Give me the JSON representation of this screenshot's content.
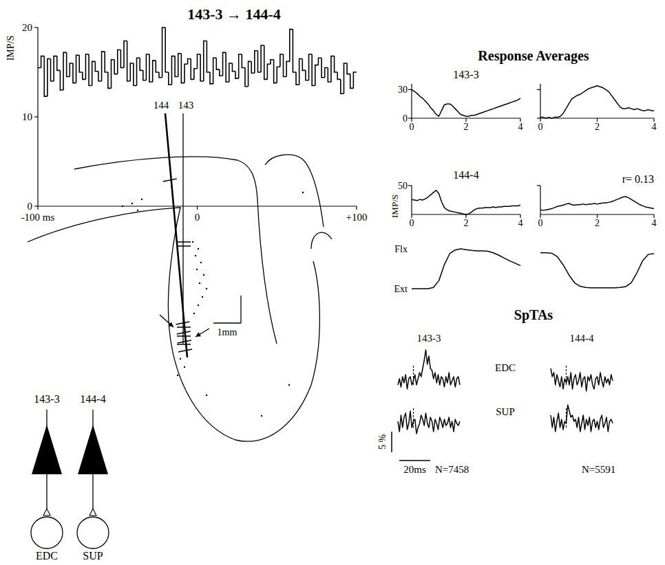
{
  "chart_data": [
    {
      "type": "histogram",
      "title": "143-3 → 144-4",
      "ylabel": "IMP/S",
      "color": "#000000",
      "line_style": "step",
      "bins": [
        -100,
        -98,
        -96,
        -94,
        -92,
        -90,
        -88,
        -86,
        -84,
        -82,
        -80,
        -78,
        -76,
        -74,
        -72,
        -70,
        -68,
        -66,
        -64,
        -62,
        -60,
        -58,
        -56,
        -54,
        -52,
        -50,
        -48,
        -46,
        -44,
        -42,
        -40,
        -38,
        -36,
        -34,
        -32,
        -30,
        -28,
        -26,
        -24,
        -22,
        -20,
        -18,
        -16,
        -14,
        -12,
        -10,
        -8,
        -6,
        -4,
        -2,
        0,
        2,
        4,
        6,
        8,
        10,
        12,
        14,
        16,
        18,
        20,
        22,
        24,
        26,
        28,
        30,
        32,
        34,
        36,
        38,
        40,
        42,
        44,
        46,
        48,
        50,
        52,
        54,
        56,
        58,
        60,
        62,
        64,
        66,
        68,
        70,
        72,
        74,
        76,
        78,
        80,
        82,
        84,
        86,
        88,
        90,
        92,
        94,
        96,
        98,
        100
      ],
      "counts": [
        15.5,
        16.8,
        12.3,
        16.5,
        14.0,
        16.8,
        15.2,
        13.0,
        17.2,
        14.5,
        16.0,
        13.8,
        16.9,
        15.0,
        14.2,
        17.0,
        13.5,
        16.2,
        15.1,
        14.0,
        17.3,
        15.0,
        13.2,
        16.4,
        14.8,
        17.5,
        15.5,
        18.5,
        14.0,
        16.0,
        13.5,
        16.6,
        15.2,
        14.1,
        17.0,
        13.9,
        16.3,
        15.0,
        14.4,
        20.0,
        15.0,
        13.6,
        16.8,
        14.5,
        17.1,
        13.8,
        15.9,
        16.5,
        14.2,
        15.4,
        17.0,
        14.0,
        18.5,
        15.0,
        13.7,
        16.6,
        15.3,
        14.6,
        17.2,
        13.9,
        16.0,
        15.1,
        14.3,
        17.0,
        15.5,
        13.4,
        16.2,
        14.9,
        17.4,
        15.0,
        18.0,
        14.2,
        15.9,
        16.4,
        13.8,
        15.6,
        17.0,
        14.5,
        16.2,
        19.8,
        15.0,
        13.6,
        16.5,
        15.2,
        14.1,
        17.0,
        13.5,
        15.8,
        16.6,
        14.4,
        15.5,
        13.9,
        16.8,
        15.0,
        14.2,
        12.6,
        16.0,
        14.8,
        13.2,
        15.0
      ],
      "xlim": [
        -100,
        100
      ],
      "ylim": [
        0,
        20
      ],
      "xticks": [
        {
          "value": -100,
          "label": "-100 ms"
        },
        0,
        {
          "value": 100,
          "label": "+100"
        }
      ],
      "yticks": [
        0,
        10,
        20
      ]
    },
    {
      "type": "line",
      "title": "143-3",
      "color": "#000000",
      "line_style": "solid",
      "x": [
        0,
        0.1,
        0.2,
        0.3,
        0.4,
        0.5,
        0.6,
        0.7,
        0.8,
        0.9,
        1,
        1.1,
        1.2,
        1.3,
        1.4,
        1.5,
        1.6,
        1.7,
        1.8,
        1.9,
        2,
        2.1,
        2.2,
        2.3,
        2.4,
        2.5,
        2.6,
        2.7,
        2.8,
        2.9,
        3,
        3.1,
        3.2,
        3.3,
        3.4,
        3.5,
        3.6,
        3.7,
        3.8,
        3.9,
        4
      ],
      "values": [
        30,
        28,
        26,
        23,
        21,
        18,
        15,
        11,
        8,
        4,
        2,
        8,
        14,
        15,
        15,
        13,
        10,
        7,
        4,
        3,
        2,
        2,
        3,
        3,
        4,
        5,
        6,
        7,
        8,
        9,
        10,
        11,
        12,
        13,
        14,
        15,
        16,
        17,
        18,
        19,
        21
      ],
      "xlim": [
        0,
        4
      ],
      "ylim": [
        0,
        36
      ],
      "xticks": [
        0,
        2,
        4
      ],
      "yticks": [
        0,
        30
      ]
    },
    {
      "type": "line",
      "color": "#000000",
      "line_style": "solid",
      "tick_labels": "x",
      "x": [
        0,
        0.1,
        0.2,
        0.3,
        0.4,
        0.5,
        0.6,
        0.7,
        0.8,
        0.9,
        1,
        1.1,
        1.2,
        1.3,
        1.4,
        1.5,
        1.6,
        1.7,
        1.8,
        1.9,
        2,
        2.1,
        2.2,
        2.3,
        2.4,
        2.5,
        2.6,
        2.7,
        2.8,
        2.9,
        3,
        3.1,
        3.2,
        3.3,
        3.4,
        3.5,
        3.6,
        3.7,
        3.8,
        3.9,
        4
      ],
      "values": [
        1,
        1,
        0,
        1,
        0,
        1,
        1,
        2,
        5,
        10,
        15,
        20,
        22,
        24,
        25,
        27,
        29,
        31,
        32,
        33,
        34,
        33,
        32,
        30,
        28,
        24,
        20,
        16,
        12,
        10,
        10,
        11,
        10,
        9,
        10,
        9,
        8,
        8,
        9,
        8,
        8
      ],
      "xlim": [
        0,
        4
      ],
      "ylim": [
        0,
        36
      ],
      "xticks": [
        0,
        2,
        4
      ],
      "yticks": [
        0,
        30
      ]
    },
    {
      "type": "line",
      "title": "144-4",
      "ylabel": "IMP/S",
      "color": "#000000",
      "line_style": "solid",
      "x": [
        0,
        0.1,
        0.2,
        0.3,
        0.4,
        0.5,
        0.6,
        0.7,
        0.8,
        0.9,
        1,
        1.1,
        1.2,
        1.3,
        1.4,
        1.5,
        1.6,
        1.7,
        1.8,
        1.9,
        2,
        2.1,
        2.2,
        2.3,
        2.4,
        2.5,
        2.6,
        2.7,
        2.8,
        2.9,
        3,
        3.1,
        3.2,
        3.3,
        3.4,
        3.5,
        3.6,
        3.7,
        3.8,
        3.9,
        4
      ],
      "values": [
        26,
        25,
        24,
        26,
        25,
        27,
        30,
        34,
        38,
        42,
        36,
        22,
        12,
        8,
        6,
        5,
        4,
        3,
        2,
        1,
        0,
        1,
        4,
        8,
        10,
        11,
        11,
        12,
        12,
        12,
        13,
        12,
        13,
        13,
        14,
        14,
        14,
        15,
        15,
        15,
        16
      ],
      "xlim": [
        0,
        4
      ],
      "ylim": [
        0,
        50
      ],
      "xticks": [
        0,
        2,
        4
      ],
      "yticks": [
        50
      ]
    },
    {
      "type": "line",
      "annotation": "r= 0.13",
      "color": "#000000",
      "line_style": "solid",
      "tick_labels": "x",
      "x": [
        0,
        0.1,
        0.2,
        0.3,
        0.4,
        0.5,
        0.6,
        0.7,
        0.8,
        0.9,
        1,
        1.1,
        1.2,
        1.3,
        1.4,
        1.5,
        1.6,
        1.7,
        1.8,
        1.9,
        2,
        2.1,
        2.2,
        2.3,
        2.4,
        2.5,
        2.6,
        2.7,
        2.8,
        2.9,
        3,
        3.1,
        3.2,
        3.3,
        3.4,
        3.5,
        3.6,
        3.7,
        3.8,
        3.9,
        4
      ],
      "values": [
        8,
        7,
        8,
        9,
        10,
        12,
        14,
        15,
        16,
        18,
        19,
        17,
        16,
        17,
        17,
        18,
        17,
        18,
        18,
        19,
        18,
        19,
        20,
        20,
        21,
        22,
        24,
        26,
        28,
        30,
        31,
        29,
        26,
        23,
        20,
        17,
        15,
        13,
        12,
        11,
        10
      ],
      "xlim": [
        0,
        4
      ],
      "ylim": [
        0,
        50
      ],
      "xticks": [
        0,
        2,
        4
      ],
      "yticks": [
        50
      ]
    },
    {
      "type": "line",
      "color": "#000000",
      "line_style": "solid",
      "tick_labels": "y",
      "x": [
        0,
        0.2,
        0.4,
        0.6,
        0.8,
        1,
        1.2,
        1.4,
        1.6,
        1.8,
        2,
        2.2,
        2.4,
        2.6,
        2.8,
        3,
        3.2,
        3.4,
        3.6,
        3.8,
        4
      ],
      "values": [
        0,
        0,
        0,
        0,
        0.03,
        0.2,
        0.6,
        0.88,
        0.97,
        1,
        0.98,
        0.96,
        0.95,
        0.95,
        0.94,
        0.9,
        0.84,
        0.77,
        0.7,
        0.64,
        0.58
      ],
      "xlim": [
        0,
        4
      ],
      "ylim": [
        0,
        1
      ],
      "yticks": [
        {
          "value": 1,
          "label": "Flx"
        },
        {
          "value": 0,
          "label": "Ext"
        }
      ]
    },
    {
      "type": "line",
      "color": "#000000",
      "line_style": "solid",
      "tick_labels": false,
      "x": [
        0,
        0.2,
        0.4,
        0.6,
        0.8,
        1,
        1.2,
        1.4,
        1.6,
        1.8,
        2,
        2.2,
        2.4,
        2.6,
        2.8,
        3,
        3.2,
        3.4,
        3.6,
        3.8,
        4
      ],
      "values": [
        0.9,
        0.9,
        0.89,
        0.8,
        0.6,
        0.35,
        0.15,
        0.06,
        0.03,
        0.02,
        0.02,
        0.02,
        0.02,
        0.02,
        0.03,
        0.05,
        0.15,
        0.4,
        0.7,
        0.86,
        0.88
      ],
      "xlim": [
        0,
        4
      ],
      "ylim": [
        0,
        1
      ]
    },
    {
      "type": "line",
      "color": "#000000",
      "line_style": "solid",
      "tick_labels": false,
      "trigger": 0,
      "x": [
        -10,
        -9,
        -8,
        -7,
        -6,
        -5,
        -4,
        -3,
        -2,
        -1,
        0,
        1,
        2,
        3,
        4,
        5,
        6,
        7,
        8,
        9,
        10,
        11,
        12,
        13,
        14,
        15,
        16,
        17,
        18,
        19,
        20,
        21,
        22,
        23,
        24,
        25,
        26,
        27,
        28,
        29,
        30
      ],
      "values": [
        -1,
        0.5,
        -1.5,
        1,
        -0.5,
        1.5,
        -2,
        0.5,
        1,
        -1,
        0,
        1.5,
        -1,
        0.5,
        2,
        1,
        3,
        5,
        7.5,
        4,
        6,
        3,
        2.5,
        0.5,
        2,
        -0.5,
        1.5,
        -1,
        1,
        0.5,
        -1.5,
        1,
        -0.5,
        2,
        -1,
        0,
        1,
        -1.5,
        0.5,
        1,
        -1
      ],
      "xlim": [
        -10,
        30
      ],
      "ylim": [
        -4,
        8
      ]
    },
    {
      "type": "line",
      "color": "#000000",
      "line_style": "solid",
      "tick_labels": false,
      "trigger": 0,
      "x": [
        -10,
        -9,
        -8,
        -7,
        -6,
        -5,
        -4,
        -3,
        -2,
        -1,
        0,
        1,
        2,
        3,
        4,
        5,
        6,
        7,
        8,
        9,
        10,
        11,
        12,
        13,
        14,
        15,
        16,
        17,
        18,
        19,
        20,
        21,
        22,
        23,
        24,
        25,
        26,
        27,
        28,
        29,
        30
      ],
      "values": [
        0.5,
        -2,
        2,
        -1,
        1.5,
        2.5,
        -1.5,
        0,
        3,
        -1,
        0.5,
        1,
        -2.5,
        -1,
        0,
        2,
        1,
        -0.5,
        2.5,
        0,
        -1,
        1.5,
        0.5,
        -2,
        1,
        0,
        -1.5,
        1.5,
        0.5,
        -1,
        1,
        -0.5,
        0,
        1.5,
        -1,
        0.5,
        -2,
        1,
        0,
        -0.5,
        0.5
      ],
      "xlim": [
        -10,
        30
      ],
      "ylim": [
        -4,
        6
      ]
    },
    {
      "type": "line",
      "color": "#000000",
      "line_style": "solid",
      "tick_labels": false,
      "trigger": 0,
      "x": [
        -10,
        -9,
        -8,
        -7,
        -6,
        -5,
        -4,
        -3,
        -2,
        -1,
        0,
        1,
        2,
        3,
        4,
        5,
        6,
        7,
        8,
        9,
        10,
        11,
        12,
        13,
        14,
        15,
        16,
        17,
        18,
        19,
        20,
        21,
        22,
        23,
        24,
        25,
        26,
        27,
        28,
        29,
        30
      ],
      "values": [
        3,
        1,
        2,
        -1,
        1.5,
        0,
        -1.5,
        1,
        -2,
        0.5,
        -0.5,
        1,
        -1,
        2,
        -2,
        0.5,
        1.5,
        -1,
        0,
        2,
        -1.5,
        0.5,
        1,
        -2.5,
        1,
        0,
        1.5,
        -1,
        -2,
        0.5,
        1,
        -1,
        2,
        0,
        -1.5,
        1,
        -0.5,
        0.5,
        -1,
        1.5,
        0
      ],
      "xlim": [
        -10,
        30
      ],
      "ylim": [
        -4,
        8
      ]
    },
    {
      "type": "line",
      "color": "#000000",
      "line_style": "solid",
      "tick_labels": false,
      "trigger": 0,
      "x": [
        -10,
        -9,
        -8,
        -7,
        -6,
        -5,
        -4,
        -3,
        -2,
        -1,
        0,
        1,
        2,
        3,
        4,
        5,
        6,
        7,
        8,
        9,
        10,
        11,
        12,
        13,
        14,
        15,
        16,
        17,
        18,
        19,
        20,
        21,
        22,
        23,
        24,
        25,
        26,
        27,
        28,
        29,
        30
      ],
      "values": [
        2,
        -1,
        1.5,
        -2,
        0.5,
        2.5,
        -1,
        1,
        -1.5,
        0.5,
        0,
        4.5,
        3,
        1.5,
        2,
        0.5,
        1,
        -1,
        1.5,
        -2,
        0,
        2,
        -1.5,
        1,
        -0.5,
        1.5,
        -2,
        0.5,
        1,
        -1,
        0.5,
        -1.5,
        1,
        2,
        -1,
        0,
        1.5,
        -2,
        0.5,
        1,
        0
      ],
      "xlim": [
        -10,
        30
      ],
      "ylim": [
        -4,
        6
      ]
    }
  ],
  "response_averages": {
    "title": "Response Averages"
  },
  "sptas": {
    "title": "SpTAs",
    "columns": [
      "143-3",
      "144-4"
    ],
    "rows": [
      "EDC",
      "SUP"
    ],
    "n_labels": [
      "N=7458",
      "N=5591"
    ],
    "scale_bars": {
      "y": {
        "value": 5,
        "label": "5 %"
      },
      "x": {
        "value": 20,
        "label": "20ms"
      }
    }
  },
  "diagram": {
    "tracks": [
      {
        "label": "144"
      },
      {
        "label": "143"
      }
    ],
    "scale_bar": {
      "value": 1,
      "label": "1mm"
    },
    "cells": [
      {
        "label": "143-3",
        "target": "EDC"
      },
      {
        "label": "144-4",
        "target": "SUP"
      }
    ]
  }
}
